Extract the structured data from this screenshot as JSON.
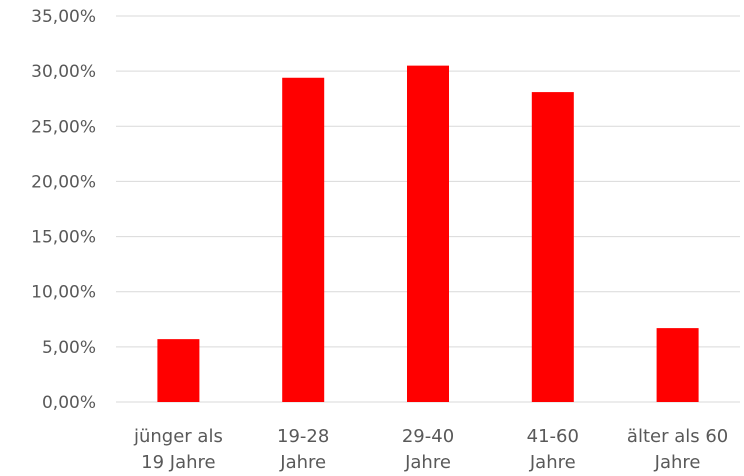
{
  "chart_data": {
    "type": "bar",
    "categories": [
      [
        "jünger als",
        "19 Jahre"
      ],
      [
        "19-28",
        "Jahre"
      ],
      [
        "29-40",
        "Jahre"
      ],
      [
        "41-60",
        "Jahre"
      ],
      [
        "älter als 60",
        "Jahre"
      ]
    ],
    "values": [
      5.7,
      29.4,
      30.5,
      28.1,
      6.7
    ],
    "ylim": [
      0,
      35
    ],
    "y_ticks": [
      0,
      5,
      10,
      15,
      20,
      25,
      30,
      35
    ],
    "y_tick_labels": [
      "0,00%",
      "5,00%",
      "10,00%",
      "15,00%",
      "20,00%",
      "25,00%",
      "30,00%",
      "35,00%"
    ],
    "grid": true,
    "bar_color": "#ff0000"
  }
}
